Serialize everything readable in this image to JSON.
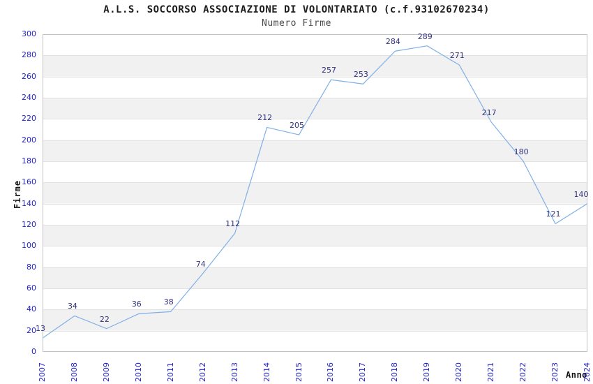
{
  "chart_data": {
    "type": "line",
    "title": "A.L.S. SOCCORSO ASSOCIAZIONE DI VOLONTARIATO (c.f.93102670234)",
    "subtitle": "Numero Firme",
    "xlabel": "Anno",
    "ylabel": "Firme",
    "x": [
      "2007",
      "2008",
      "2009",
      "2010",
      "2011",
      "2012",
      "2013",
      "2014",
      "2015",
      "2016",
      "2017",
      "2018",
      "2019",
      "2020",
      "2021",
      "2022",
      "2023",
      "2024"
    ],
    "series": [
      {
        "name": "Numero Firme",
        "values": [
          13,
          34,
          22,
          36,
          38,
          74,
          112,
          212,
          205,
          257,
          253,
          284,
          289,
          271,
          217,
          180,
          121,
          140
        ]
      }
    ],
    "ylim": [
      0,
      300
    ],
    "ytick_step": 20,
    "grid": true,
    "legend": "none",
    "band_fill": "alternating-horizontal",
    "data_labels_shown": true,
    "colors": {
      "line": "#7fb0e6",
      "axis_tick_labels": "#2323cd",
      "data_labels": "#30307e",
      "band": "#f1f1f1",
      "grid": "#e2e2e2",
      "plot_border": "#c2c2c2",
      "title": "#1c1c1c",
      "subtitle": "#4a4a4a",
      "axis_titles": "#111111",
      "background": "#ffffff"
    }
  }
}
